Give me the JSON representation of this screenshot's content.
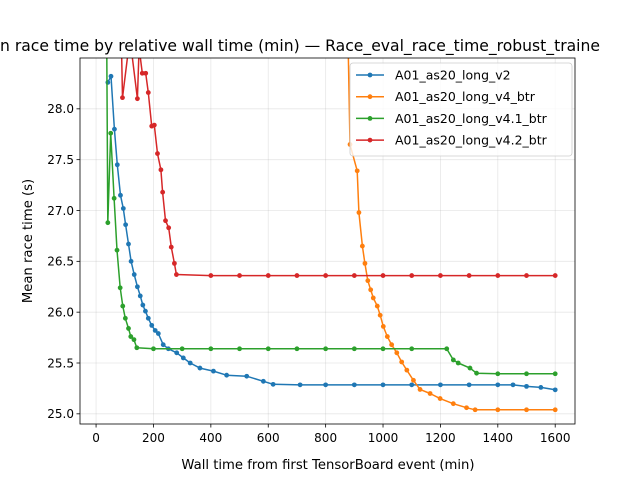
{
  "chart_data": {
    "type": "line",
    "title": "n race time by relative wall time (min) — Race_eval_race_time_robust_traine",
    "xlabel": "Wall time from first TensorBoard event (min)",
    "ylabel": "Mean race time (s)",
    "xlim": [
      -56,
      1669
    ],
    "ylim": [
      24.9,
      28.5
    ],
    "xticks": [
      0,
      200,
      400,
      600,
      800,
      1000,
      1200,
      1400,
      1600
    ],
    "xtick_labels": [
      "0",
      "200",
      "400",
      "600",
      "800",
      "1000",
      "1200",
      "1400",
      "1600"
    ],
    "yticks": [
      25.0,
      25.5,
      26.0,
      26.5,
      27.0,
      27.5,
      28.0
    ],
    "ytick_labels": [
      "25.0",
      "25.5",
      "26.0",
      "26.5",
      "27.0",
      "27.5",
      "28.0"
    ],
    "grid": true,
    "legend_position": "top-right",
    "series": [
      {
        "name": "A01_as20_long_v2",
        "color": "#1f77b4",
        "x": [
          41,
          52,
          64,
          74,
          85,
          95,
          103,
          113,
          122,
          133,
          144,
          154,
          163,
          172,
          182,
          194,
          206,
          217,
          234,
          252,
          281,
          304,
          328,
          362,
          409,
          455,
          525,
          583,
          617,
          711,
          800,
          900,
          1000,
          1100,
          1200,
          1300,
          1400,
          1453,
          1500,
          1550,
          1600
        ],
        "y": [
          28.26,
          28.32,
          27.8,
          27.45,
          27.15,
          27.02,
          26.86,
          26.67,
          26.5,
          26.37,
          26.25,
          26.16,
          26.07,
          26.01,
          25.94,
          25.87,
          25.82,
          25.79,
          25.68,
          25.64,
          25.6,
          25.55,
          25.5,
          25.45,
          25.42,
          25.38,
          25.37,
          25.32,
          25.29,
          25.285,
          25.285,
          25.285,
          25.285,
          25.285,
          25.285,
          25.285,
          25.285,
          25.285,
          25.27,
          25.26,
          25.236
        ]
      },
      {
        "name": "A01_as20_long_v4_btr",
        "color": "#ff7f0e",
        "x": [
          878,
          885,
          910,
          916,
          928,
          937,
          947,
          957,
          966,
          980,
          990,
          1001,
          1015,
          1030,
          1048,
          1065,
          1083,
          1106,
          1129,
          1164,
          1199,
          1245,
          1291,
          1321,
          1400,
          1500,
          1600
        ],
        "y": [
          28.7,
          27.65,
          27.39,
          26.98,
          26.65,
          26.48,
          26.31,
          26.22,
          26.14,
          26.06,
          25.97,
          25.86,
          25.76,
          25.68,
          25.6,
          25.51,
          25.43,
          25.33,
          25.24,
          25.2,
          25.15,
          25.1,
          25.06,
          25.04,
          25.04,
          25.04,
          25.04
        ]
      },
      {
        "name": "A01_as20_long_v4.1_btr",
        "color": "#2ca02c",
        "x": [
          37,
          41,
          51,
          63,
          73,
          84,
          93,
          102,
          113,
          121,
          132,
          142,
          200,
          300,
          400,
          500,
          600,
          700,
          800,
          900,
          1000,
          1100,
          1222,
          1245,
          1262,
          1303,
          1326,
          1400,
          1500,
          1600
        ],
        "y": [
          28.7,
          26.88,
          27.76,
          27.12,
          26.61,
          26.24,
          26.06,
          25.94,
          25.84,
          25.76,
          25.73,
          25.65,
          25.64,
          25.64,
          25.64,
          25.64,
          25.64,
          25.64,
          25.64,
          25.64,
          25.64,
          25.64,
          25.64,
          25.53,
          25.5,
          25.45,
          25.4,
          25.394,
          25.394,
          25.394
        ]
      },
      {
        "name": "A01_as20_long_v4.2_btr",
        "color": "#d62728",
        "x": [
          88,
          92,
          118,
          144,
          150,
          161,
          173,
          182,
          194,
          203,
          214,
          226,
          232,
          242,
          253,
          262,
          273,
          280,
          400,
          500,
          600,
          700,
          800,
          900,
          1000,
          1100,
          1200,
          1300,
          1400,
          1500,
          1600
        ],
        "y": [
          28.7,
          28.11,
          28.7,
          28.1,
          28.6,
          28.35,
          28.35,
          28.16,
          27.83,
          27.84,
          27.56,
          27.4,
          27.18,
          26.9,
          26.83,
          26.64,
          26.48,
          26.37,
          26.36,
          26.36,
          26.36,
          26.36,
          26.36,
          26.36,
          26.36,
          26.36,
          26.36,
          26.36,
          26.36,
          26.36,
          26.36
        ]
      }
    ]
  }
}
